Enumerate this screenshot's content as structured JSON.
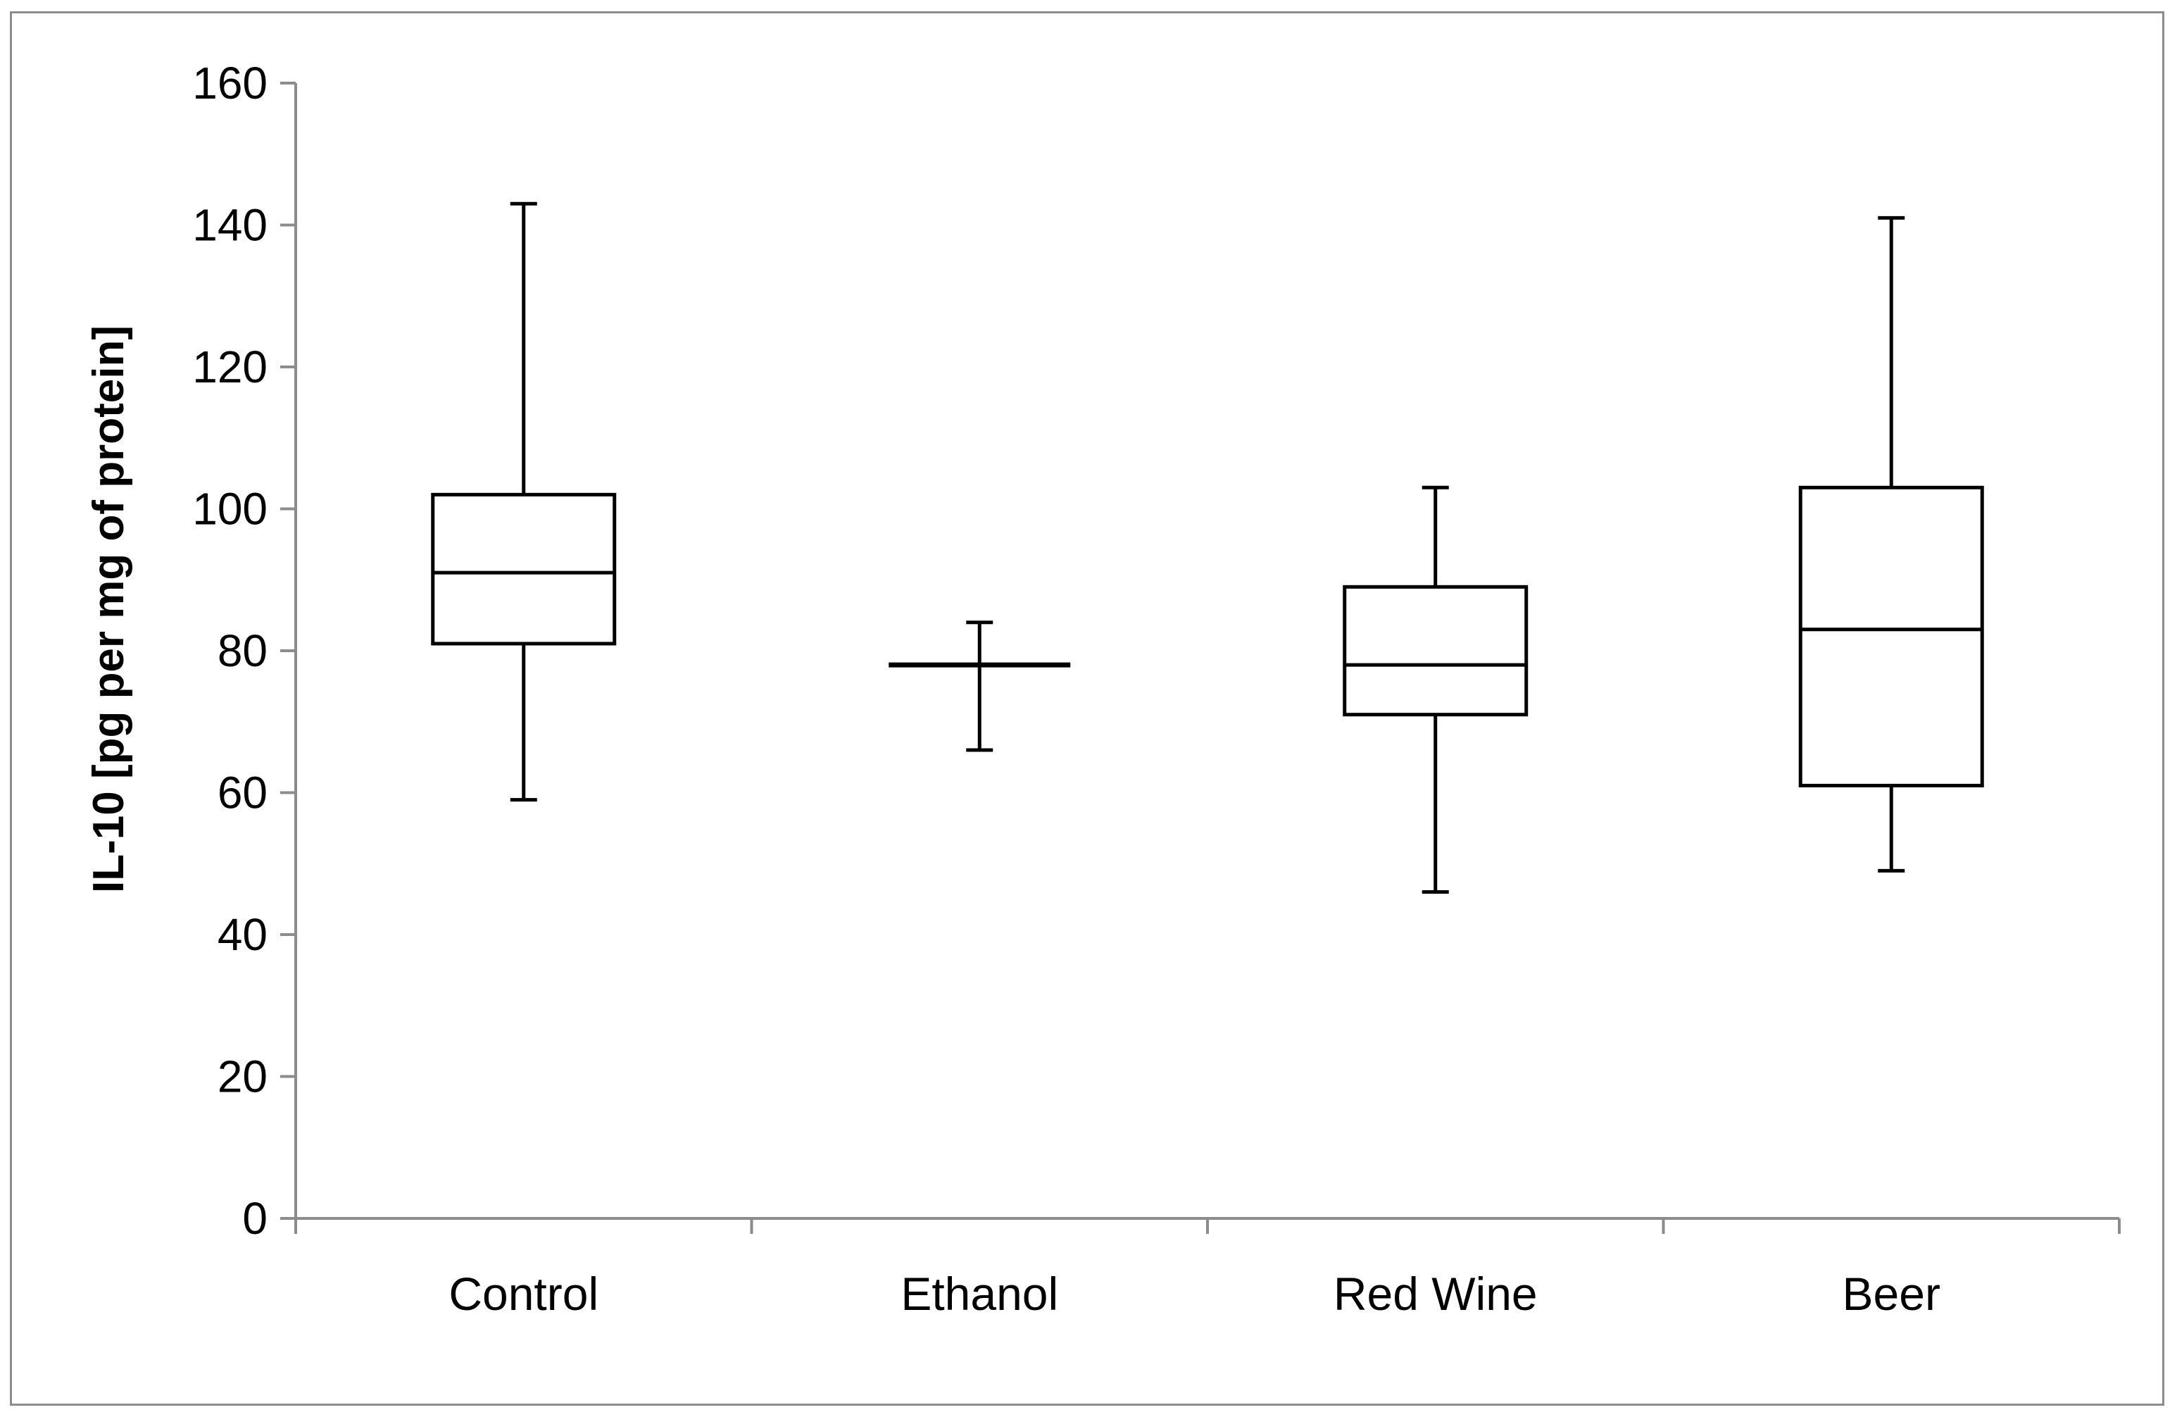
{
  "chart_data": {
    "type": "boxplot",
    "title": "",
    "xlabel": "",
    "ylabel": "IL-10 [pg per mg of protein]",
    "ylim": [
      0,
      160
    ],
    "yticks": [
      0,
      20,
      40,
      60,
      80,
      100,
      120,
      140,
      160
    ],
    "ytick_labels": [
      "0",
      "20",
      "40",
      "60",
      "80",
      "100",
      "120",
      "140",
      "160"
    ],
    "grid": false,
    "legend": "none",
    "categories": [
      "Control",
      "Ethanol",
      "Red Wine",
      "Beer"
    ],
    "boxes": [
      {
        "category": "Control",
        "min": 59,
        "q1": 81,
        "median": 91,
        "q3": 102,
        "max": 143
      },
      {
        "category": "Ethanol",
        "min": 66,
        "q1": 78,
        "median": 78,
        "q3": 78,
        "max": 84
      },
      {
        "category": "Red Wine",
        "min": 46,
        "q1": 71,
        "median": 78,
        "q3": 89,
        "max": 103
      },
      {
        "category": "Beer",
        "min": 49,
        "q1": 61,
        "median": 83,
        "q3": 103,
        "max": 141
      }
    ],
    "colors": {
      "axis": "#8c8c8c",
      "box": "#000000"
    }
  }
}
